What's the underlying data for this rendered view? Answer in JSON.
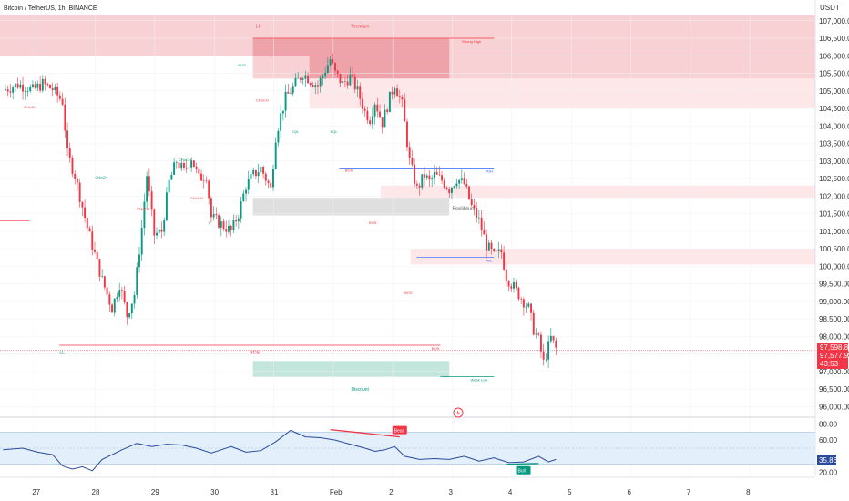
{
  "header": {
    "title": "Bitcoin / TetherUS, 1h, BINANCE",
    "currency": "USDT"
  },
  "colors": {
    "up": "#089981",
    "down": "#f23645",
    "premium": "#f7c7cb",
    "premium_dark": "#e88a92",
    "equilibrium": "#d9d9d9",
    "discount": "#b7e0d6",
    "rsi_band": "#e3f0fb",
    "rsi_line": "#2a4a9b",
    "level_blue": "#2962ff",
    "level_red": "#f23645",
    "accent_price": "#f23645",
    "rsi_badge": "#2a4a9b"
  },
  "chart_data": {
    "type": "candlestick",
    "ylabel": "",
    "ylim": [
      95750,
      107150
    ],
    "y_ticks": [
      "107,000.00",
      "106,500.00",
      "106,000.00",
      "105,500.00",
      "105,000.00",
      "104,500.00",
      "104,000.00",
      "103,500.00",
      "103,000.00",
      "102,500.00",
      "102,000.00",
      "101,500.00",
      "101,000.00",
      "100,500.00",
      "100,000.00",
      "99,500.00",
      "99,000.00",
      "98,500.00",
      "98,000.00",
      "97,500.00",
      "97,000.00",
      "96,500.00",
      "96,000.00"
    ],
    "y_tick_values": [
      107000,
      106500,
      106000,
      105500,
      105000,
      104500,
      104000,
      103500,
      103000,
      102500,
      102000,
      101500,
      101000,
      100500,
      100000,
      99500,
      99000,
      98500,
      98000,
      97500,
      97000,
      96500,
      96000
    ],
    "x_ticks": [
      "27",
      "28",
      "29",
      "30",
      "31",
      "Feb",
      "2",
      "3",
      "4",
      "5",
      "6",
      "7",
      "8"
    ],
    "x_tick_days": [
      0,
      1,
      2,
      3,
      4,
      5,
      6,
      7,
      8,
      9,
      10,
      11,
      12
    ],
    "x_first_day": -0.6,
    "x_last_day": 13.1,
    "candles_per_day": 24,
    "path_points": [
      [
        0,
        105.02
      ],
      [
        6,
        105.18
      ],
      [
        10,
        105.1
      ],
      [
        12,
        105.02
      ],
      [
        16,
        105.2
      ],
      [
        20,
        105.05
      ],
      [
        24,
        104.7
      ],
      [
        26,
        103.2
      ],
      [
        29,
        102.6
      ],
      [
        34,
        101.1
      ],
      [
        36,
        100.6
      ],
      [
        40,
        99.6
      ],
      [
        44,
        98.8
      ],
      [
        47,
        99.5
      ],
      [
        50,
        98.6
      ],
      [
        53,
        99.2
      ],
      [
        56,
        101.1
      ],
      [
        58,
        102.6
      ],
      [
        61,
        100.9
      ],
      [
        64,
        101.0
      ],
      [
        67,
        102.4
      ],
      [
        70,
        103.0
      ],
      [
        73,
        102.7
      ],
      [
        76,
        103.1
      ],
      [
        79,
        102.5
      ],
      [
        82,
        102.6
      ],
      [
        84,
        101.4
      ],
      [
        88,
        101.2
      ],
      [
        92,
        101.0
      ],
      [
        95,
        101.5
      ],
      [
        98,
        102.3
      ],
      [
        101,
        102.6
      ],
      [
        104,
        102.8
      ],
      [
        108,
        102.2
      ],
      [
        110,
        103.7
      ],
      [
        112,
        104.3
      ],
      [
        114,
        104.8
      ],
      [
        118,
        105.2
      ],
      [
        121,
        105.5
      ],
      [
        124,
        105.3
      ],
      [
        127,
        105.15
      ],
      [
        130,
        105.6
      ],
      [
        132,
        105.9
      ],
      [
        134,
        105.5
      ],
      [
        137,
        105.2
      ],
      [
        140,
        105.4
      ],
      [
        143,
        105.0
      ],
      [
        146,
        104.4
      ],
      [
        148,
        104.2
      ],
      [
        150,
        104.7
      ],
      [
        153,
        104.1
      ],
      [
        156,
        104.8
      ],
      [
        158,
        105.2
      ],
      [
        161,
        104.6
      ],
      [
        164,
        103.0
      ],
      [
        167,
        102.2
      ],
      [
        170,
        102.6
      ],
      [
        172,
        102.4
      ],
      [
        174,
        102.6
      ],
      [
        177,
        102.45
      ],
      [
        180,
        102.2
      ],
      [
        183,
        102.5
      ],
      [
        186,
        102.35
      ],
      [
        189,
        101.7
      ],
      [
        192,
        101.3
      ],
      [
        195,
        100.6
      ],
      [
        198,
        100.3
      ],
      [
        201,
        100.4
      ],
      [
        203,
        99.7
      ],
      [
        206,
        99.4
      ],
      [
        209,
        99.1
      ],
      [
        212,
        98.8
      ],
      [
        214,
        98.2
      ],
      [
        216,
        97.9
      ],
      [
        218,
        97.25
      ],
      [
        221,
        97.95
      ],
      [
        223,
        97.65
      ]
    ],
    "last_price": "97,598.83",
    "second_price": "97,577.97",
    "countdown": "43:53",
    "zones": [
      {
        "label": "Premium",
        "kind": "premium",
        "x0_day": -0.6,
        "x1_day": 13.1,
        "y0": 106.0,
        "y1": 107.15
      },
      {
        "label": "",
        "kind": "premium_dark",
        "x0_day": 3.65,
        "x1_day": 6.95,
        "y0": 106.0,
        "y1": 106.5
      },
      {
        "label": "",
        "kind": "premium",
        "x0_day": 3.65,
        "x1_day": 13.1,
        "y0": 105.35,
        "y1": 106.0
      },
      {
        "label": "",
        "kind": "premium_dark",
        "x0_day": 4.6,
        "x1_day": 6.95,
        "y0": 105.35,
        "y1": 106.0
      },
      {
        "label": "",
        "kind": "premium_light",
        "x0_day": 4.6,
        "x1_day": 13.1,
        "y0": 104.5,
        "y1": 105.35
      },
      {
        "label": "",
        "kind": "premium_light",
        "x0_day": 5.8,
        "x1_day": 13.1,
        "y0": 101.95,
        "y1": 102.3
      },
      {
        "label": "",
        "kind": "premium_light",
        "x0_day": 6.3,
        "x1_day": 13.1,
        "y0": 100.05,
        "y1": 100.5
      },
      {
        "label": "Equilibrium",
        "kind": "equilibrium",
        "x0_day": 3.65,
        "x1_day": 6.95,
        "y0": 101.45,
        "y1": 101.95
      },
      {
        "label": "Discount",
        "kind": "discount",
        "x0_day": 3.65,
        "x1_day": 6.95,
        "y0": 96.85,
        "y1": 97.3
      }
    ],
    "levels": [
      {
        "label": "PDH",
        "y": 102.8,
        "x0_day": 5.1,
        "x1_day": 7.7,
        "color": "blue"
      },
      {
        "label": "PDL",
        "y": 100.25,
        "x0_day": 6.4,
        "x1_day": 7.7,
        "color": "blue"
      },
      {
        "label": "Strong High",
        "y": 106.5,
        "x0_day": 3.65,
        "x1_day": 7.7,
        "color": "red"
      },
      {
        "label": "Weak Low",
        "y": 96.85,
        "x0_day": 6.8,
        "x1_day": 7.7,
        "color": "green"
      },
      {
        "label": "BOS",
        "y": 97.75,
        "x0_day": 0.4,
        "x1_day": 6.8,
        "color": "red"
      }
    ],
    "labels": [
      {
        "text": "LH",
        "day": 3.7,
        "y": 106.8,
        "color": "red"
      },
      {
        "text": "Premium",
        "day": 5.3,
        "y": 106.8,
        "color": "red"
      },
      {
        "text": "LL",
        "day": 0.4,
        "y": 97.5,
        "color": "green"
      },
      {
        "text": "BOS",
        "day": 3.6,
        "y": 97.5,
        "color": "red"
      },
      {
        "text": "Equilibrium",
        "day": 7.0,
        "y": 101.6,
        "color": "gray"
      },
      {
        "text": "Discount",
        "day": 5.3,
        "y": 96.45,
        "color": "green"
      }
    ],
    "rsi": {
      "ylim": [
        15,
        85
      ],
      "y_ticks": [
        "80.00",
        "60.00",
        "20.00"
      ],
      "y_tick_values": [
        80,
        60,
        20
      ],
      "value": "35.86",
      "band": [
        30,
        70
      ],
      "mid": 50,
      "points": [
        [
          0,
          48
        ],
        [
          8,
          50
        ],
        [
          14,
          45
        ],
        [
          20,
          42
        ],
        [
          24,
          28
        ],
        [
          28,
          24
        ],
        [
          32,
          27
        ],
        [
          36,
          22
        ],
        [
          40,
          36
        ],
        [
          48,
          48
        ],
        [
          54,
          56
        ],
        [
          60,
          52
        ],
        [
          66,
          55
        ],
        [
          72,
          54
        ],
        [
          78,
          50
        ],
        [
          84,
          44
        ],
        [
          88,
          48
        ],
        [
          92,
          52
        ],
        [
          98,
          45
        ],
        [
          104,
          47
        ],
        [
          110,
          58
        ],
        [
          116,
          72
        ],
        [
          122,
          64
        ],
        [
          128,
          63
        ],
        [
          134,
          60
        ],
        [
          140,
          55
        ],
        [
          146,
          50
        ],
        [
          150,
          46
        ],
        [
          154,
          48
        ],
        [
          158,
          52
        ],
        [
          162,
          40
        ],
        [
          168,
          36
        ],
        [
          174,
          37
        ],
        [
          180,
          36
        ],
        [
          186,
          40
        ],
        [
          192,
          34
        ],
        [
          198,
          38
        ],
        [
          204,
          32
        ],
        [
          210,
          33
        ],
        [
          216,
          40
        ],
        [
          220,
          33
        ],
        [
          223,
          36
        ]
      ],
      "divergences": [
        {
          "label": "Bear",
          "d0": 132,
          "v0": 73,
          "d1": 160,
          "v1": 64,
          "color": "red"
        },
        {
          "label": "Bull",
          "d0": 203,
          "v0": 30,
          "d1": 216,
          "v1": 31,
          "color": "green"
        }
      ]
    },
    "annotations": [
      {
        "text": "CHoCH",
        "day": -0.2,
        "y": 104.5,
        "color": "red"
      },
      {
        "text": "CHoCH",
        "day": 1.0,
        "y": 102.5,
        "color": "green"
      },
      {
        "text": "CHoCH",
        "day": 1.7,
        "y": 101.6,
        "color": "red"
      },
      {
        "text": "CHoCH",
        "day": 2.4,
        "y": 103.0,
        "color": "green"
      },
      {
        "text": "CHoCH",
        "day": 2.6,
        "y": 101.9,
        "color": "red"
      },
      {
        "text": "BOS",
        "day": 3.4,
        "y": 105.7,
        "color": "green"
      },
      {
        "text": "CHoCH",
        "day": 3.7,
        "y": 104.7,
        "color": "red"
      },
      {
        "text": "EQL",
        "day": 4.3,
        "y": 103.8,
        "color": "green"
      },
      {
        "text": "EQL",
        "day": 4.95,
        "y": 103.8,
        "color": "green"
      },
      {
        "text": "BOS",
        "day": 5.2,
        "y": 102.7,
        "color": "red"
      },
      {
        "text": "BOS",
        "day": 5.6,
        "y": 101.2,
        "color": "red"
      },
      {
        "text": "BOS",
        "day": 6.2,
        "y": 99.2,
        "color": "red"
      },
      {
        "text": "1",
        "day": 2.9,
        "y": 101.2,
        "color": "green"
      }
    ]
  }
}
